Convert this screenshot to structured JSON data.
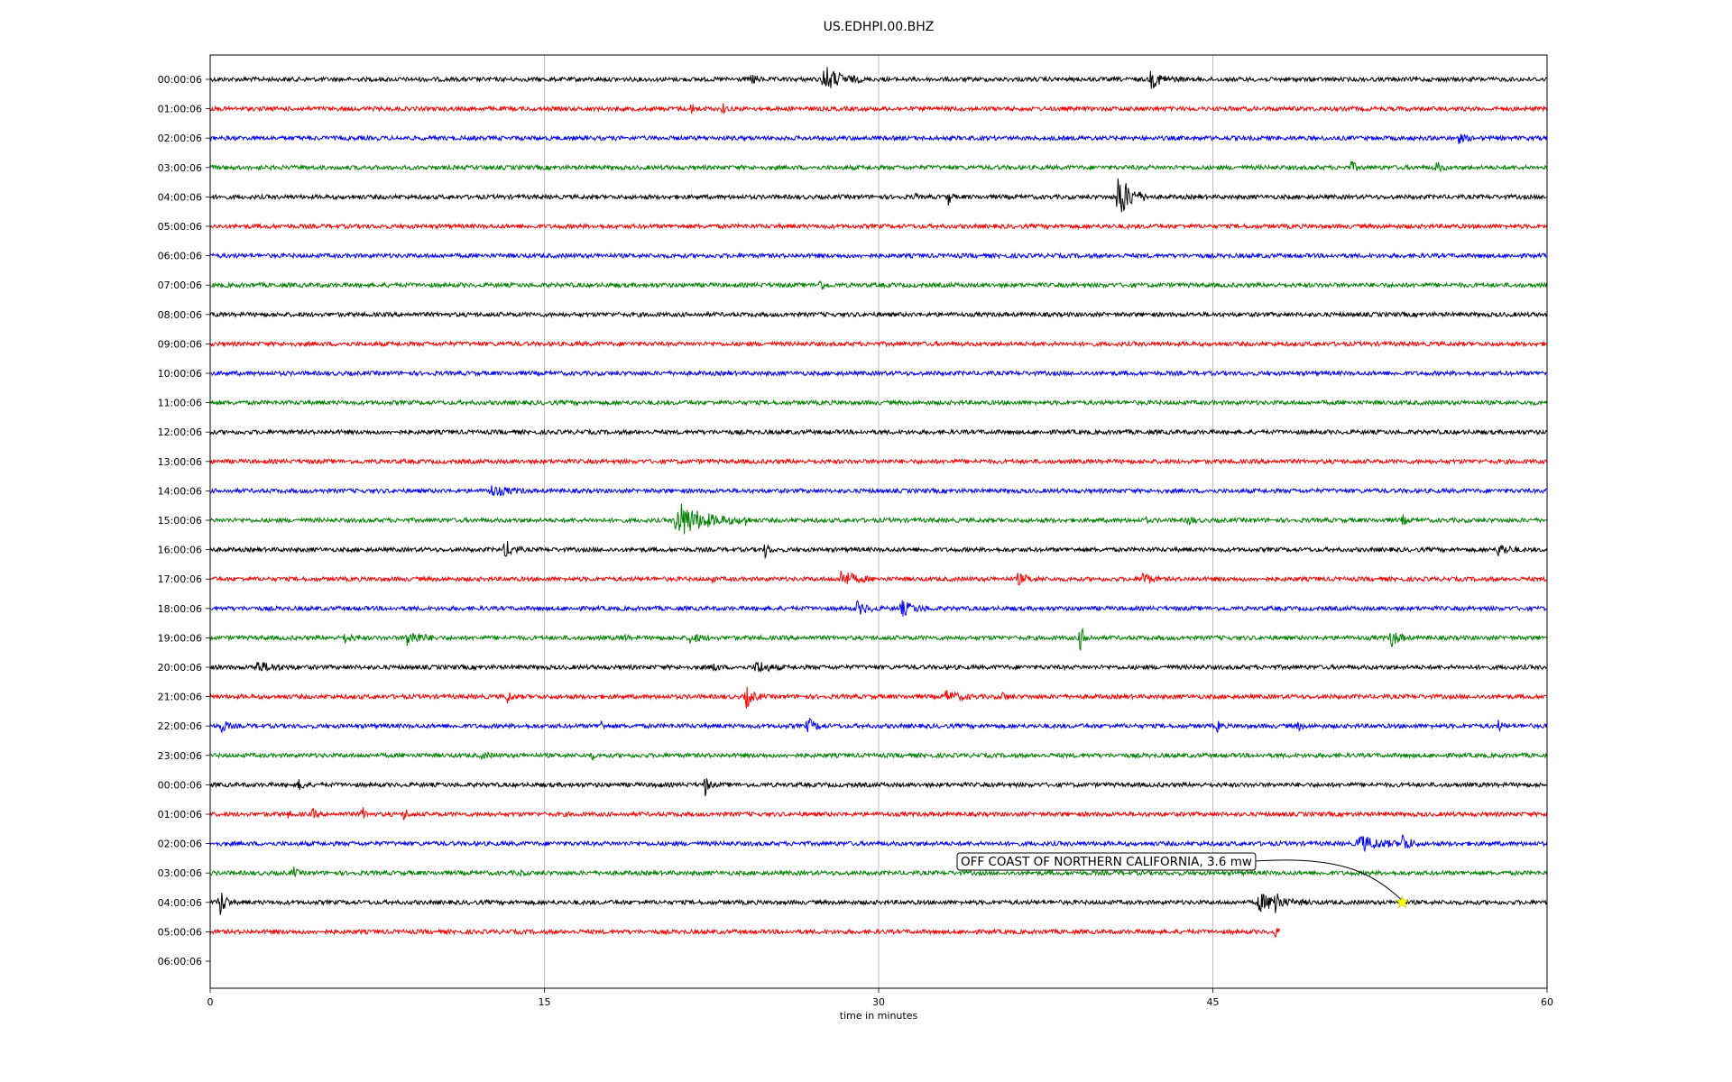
{
  "chart_data": {
    "type": "line",
    "title": "US.EDHPI.00.BHZ",
    "xlabel": "time in minutes",
    "ylabel": "",
    "xlim": [
      0,
      60
    ],
    "xticks": [
      "0",
      "15",
      "30",
      "45",
      "60"
    ],
    "grid": "vertical",
    "row_labels": [
      "00:00:06",
      "01:00:06",
      "02:00:06",
      "03:00:06",
      "04:00:06",
      "05:00:06",
      "06:00:06",
      "07:00:06",
      "08:00:06",
      "09:00:06",
      "10:00:06",
      "11:00:06",
      "12:00:06",
      "13:00:06",
      "14:00:06",
      "15:00:06",
      "16:00:06",
      "17:00:06",
      "18:00:06",
      "19:00:06",
      "20:00:06",
      "21:00:06",
      "22:00:06",
      "23:00:06",
      "00:00:06",
      "01:00:06",
      "02:00:06",
      "03:00:06",
      "04:00:06",
      "05:00:06",
      "06:00:06"
    ],
    "trace_colors": [
      "#000000",
      "#ff0000",
      "#0000ff",
      "#008000"
    ],
    "trace_end_minutes": [
      60,
      60,
      60,
      60,
      60,
      60,
      60,
      60,
      60,
      60,
      60,
      60,
      60,
      60,
      60,
      60,
      60,
      60,
      60,
      60,
      60,
      60,
      60,
      60,
      60,
      60,
      60,
      60,
      60,
      48,
      0
    ],
    "events": [
      {
        "row": 0,
        "t": 27.5,
        "amp": 16,
        "dur": 1.8
      },
      {
        "row": 0,
        "t": 42.2,
        "amp": 9,
        "dur": 1.5
      },
      {
        "row": 0,
        "t": 24.3,
        "amp": 7,
        "dur": 0.5
      },
      {
        "row": 1,
        "t": 21.5,
        "amp": 6,
        "dur": 0.6
      },
      {
        "row": 1,
        "t": 23.0,
        "amp": 5,
        "dur": 0.4
      },
      {
        "row": 2,
        "t": 56.0,
        "amp": 5,
        "dur": 0.8
      },
      {
        "row": 3,
        "t": 51.2,
        "amp": 7,
        "dur": 0.5
      },
      {
        "row": 3,
        "t": 55.0,
        "amp": 8,
        "dur": 0.5
      },
      {
        "row": 4,
        "t": 40.7,
        "amp": 30,
        "dur": 1.4
      },
      {
        "row": 4,
        "t": 33.1,
        "amp": 12,
        "dur": 0.3
      },
      {
        "row": 4,
        "t": 31.6,
        "amp": 7,
        "dur": 0.2
      },
      {
        "row": 7,
        "t": 27.3,
        "amp": 8,
        "dur": 0.5
      },
      {
        "row": 14,
        "t": 12.5,
        "amp": 6,
        "dur": 2.0
      },
      {
        "row": 15,
        "t": 20.9,
        "amp": 22,
        "dur": 3.0
      },
      {
        "row": 15,
        "t": 24.0,
        "amp": 8,
        "dur": 0.3
      },
      {
        "row": 15,
        "t": 41.9,
        "amp": 7,
        "dur": 0.3
      },
      {
        "row": 15,
        "t": 43.9,
        "amp": 6,
        "dur": 0.5
      },
      {
        "row": 15,
        "t": 53.5,
        "amp": 6,
        "dur": 0.4
      },
      {
        "row": 16,
        "t": 13.2,
        "amp": 12,
        "dur": 0.8
      },
      {
        "row": 16,
        "t": 24.9,
        "amp": 9,
        "dur": 0.4
      },
      {
        "row": 16,
        "t": 57.8,
        "amp": 8,
        "dur": 1.0
      },
      {
        "row": 17,
        "t": 28.3,
        "amp": 10,
        "dur": 1.5
      },
      {
        "row": 17,
        "t": 36.2,
        "amp": 6,
        "dur": 1.2
      },
      {
        "row": 17,
        "t": 41.8,
        "amp": 10,
        "dur": 0.8
      },
      {
        "row": 17,
        "t": 22.5,
        "amp": 6,
        "dur": 0.2
      },
      {
        "row": 18,
        "t": 29.0,
        "amp": 7,
        "dur": 1.2
      },
      {
        "row": 18,
        "t": 31.0,
        "amp": 8,
        "dur": 1.5
      },
      {
        "row": 19,
        "t": 8.8,
        "amp": 9,
        "dur": 1.5
      },
      {
        "row": 19,
        "t": 6.0,
        "amp": 5,
        "dur": 0.8
      },
      {
        "row": 19,
        "t": 39.0,
        "amp": 16,
        "dur": 0.6
      },
      {
        "row": 19,
        "t": 53.0,
        "amp": 11,
        "dur": 0.8
      },
      {
        "row": 19,
        "t": 21.5,
        "amp": 6,
        "dur": 1.0
      },
      {
        "row": 19,
        "t": 18.5,
        "amp": 5,
        "dur": 0.4
      },
      {
        "row": 20,
        "t": 2.0,
        "amp": 6,
        "dur": 2.0
      },
      {
        "row": 20,
        "t": 24.5,
        "amp": 8,
        "dur": 1.2
      },
      {
        "row": 20,
        "t": 22.6,
        "amp": 8,
        "dur": 0.3
      },
      {
        "row": 21,
        "t": 13.3,
        "amp": 8,
        "dur": 0.5
      },
      {
        "row": 21,
        "t": 24.0,
        "amp": 14,
        "dur": 0.8
      },
      {
        "row": 21,
        "t": 33.0,
        "amp": 6,
        "dur": 1.5
      },
      {
        "row": 21,
        "t": 35.5,
        "amp": 5,
        "dur": 0.6
      },
      {
        "row": 22,
        "t": 0.5,
        "amp": 8,
        "dur": 0.6
      },
      {
        "row": 22,
        "t": 17.5,
        "amp": 8,
        "dur": 0.3
      },
      {
        "row": 22,
        "t": 26.8,
        "amp": 9,
        "dur": 0.8
      },
      {
        "row": 22,
        "t": 45.2,
        "amp": 9,
        "dur": 0.3
      },
      {
        "row": 22,
        "t": 48.8,
        "amp": 5,
        "dur": 0.4
      },
      {
        "row": 22,
        "t": 57.8,
        "amp": 6,
        "dur": 0.4
      },
      {
        "row": 23,
        "t": 12.2,
        "amp": 4,
        "dur": 0.6
      },
      {
        "row": 23,
        "t": 17.1,
        "amp": 7,
        "dur": 0.2
      },
      {
        "row": 24,
        "t": 4.0,
        "amp": 10,
        "dur": 0.4
      },
      {
        "row": 24,
        "t": 22.2,
        "amp": 13,
        "dur": 0.4
      },
      {
        "row": 24,
        "t": 20.0,
        "amp": 5,
        "dur": 0.3
      },
      {
        "row": 25,
        "t": 8.7,
        "amp": 11,
        "dur": 0.3
      },
      {
        "row": 25,
        "t": 6.8,
        "amp": 9,
        "dur": 0.4
      },
      {
        "row": 25,
        "t": 4.6,
        "amp": 7,
        "dur": 0.3
      },
      {
        "row": 25,
        "t": 3.5,
        "amp": 6,
        "dur": 0.2
      },
      {
        "row": 26,
        "t": 51.5,
        "amp": 9,
        "dur": 2.5
      },
      {
        "row": 26,
        "t": 53.5,
        "amp": 10,
        "dur": 0.8
      },
      {
        "row": 27,
        "t": 3.7,
        "amp": 7,
        "dur": 0.4
      },
      {
        "row": 27,
        "t": 13.9,
        "amp": 7,
        "dur": 0.2
      },
      {
        "row": 28,
        "t": 0.4,
        "amp": 20,
        "dur": 0.6
      },
      {
        "row": 28,
        "t": 47.0,
        "amp": 10,
        "dur": 2.5
      },
      {
        "row": 28,
        "t": 47.8,
        "amp": 24,
        "dur": 0.3
      },
      {
        "row": 29,
        "t": 47.8,
        "amp": 6,
        "dur": 0.3
      }
    ],
    "annotation": {
      "text": "OFF COAST OF NORTHERN CALIFORNIA, 3.6 mw",
      "row": 28,
      "t": 53.5,
      "marker": "star",
      "marker_color": "#ffff00"
    }
  }
}
